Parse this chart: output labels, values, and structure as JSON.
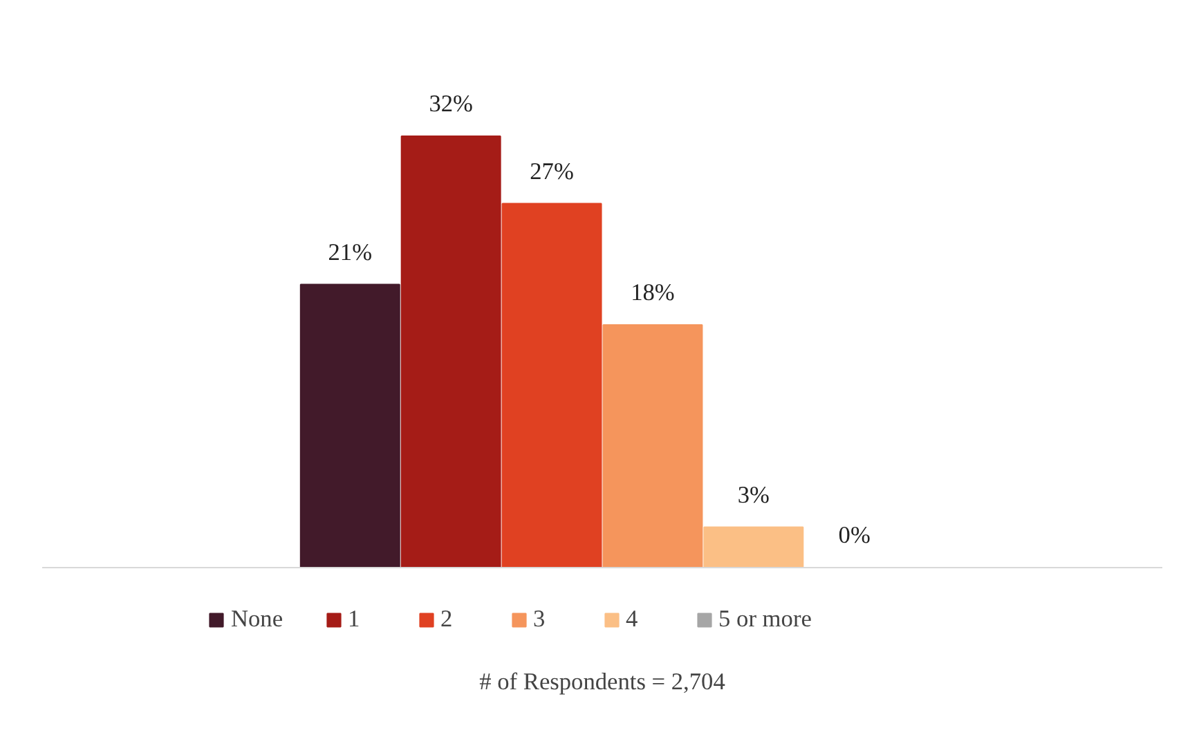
{
  "chart_data": {
    "type": "bar",
    "categories": [
      null
    ],
    "series": [
      {
        "name": "None",
        "color": "#421a2a",
        "values": [
          21
        ],
        "value_labels": [
          "21%"
        ]
      },
      {
        "name": "1",
        "color": "#a51c17",
        "values": [
          32
        ],
        "value_labels": [
          "32%"
        ]
      },
      {
        "name": "2",
        "color": "#e04122",
        "values": [
          27
        ],
        "value_labels": [
          "27%"
        ]
      },
      {
        "name": "3",
        "color": "#f5955c",
        "values": [
          18
        ],
        "value_labels": [
          "18%"
        ]
      },
      {
        "name": "4",
        "color": "#fbbf85",
        "values": [
          3
        ],
        "value_labels": [
          "3%"
        ]
      },
      {
        "name": "5 or more",
        "color": "#a6a6a6",
        "values": [
          0
        ],
        "value_labels": [
          "0%"
        ]
      }
    ],
    "legend": "bottom",
    "annotations": [
      "# of Respondents = 2,704"
    ]
  }
}
